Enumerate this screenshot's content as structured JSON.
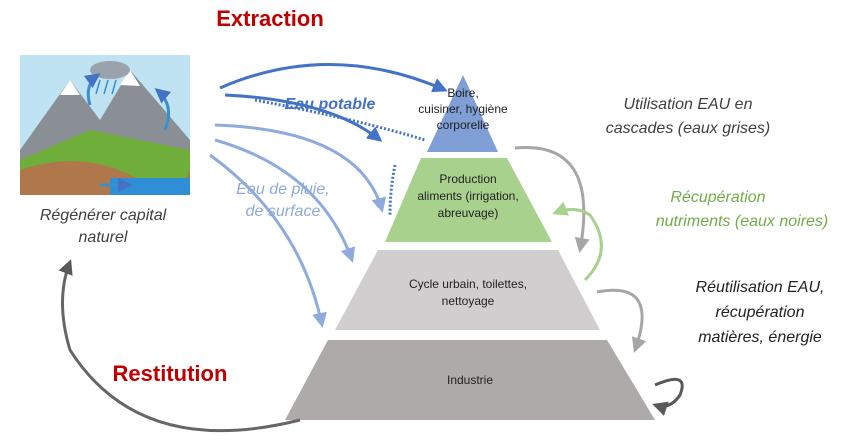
{
  "extraction": "Extraction",
  "restitution": "Restitution",
  "nature": {
    "lines": [
      "Régénérer capital",
      "naturel"
    ]
  },
  "flows": {
    "drinking": "Eau potable",
    "rain": [
      "Eau de pluie,",
      "de surface"
    ]
  },
  "levels": [
    {
      "lines": [
        "Boire,",
        "cuisiner, hygiène",
        "corporelle"
      ]
    },
    {
      "lines": [
        "Production",
        "aliments (irrigation,",
        "abreuvage)"
      ]
    },
    {
      "lines": [
        "Cycle urbain, toilettes,",
        "nettoyage"
      ]
    },
    {
      "lines": [
        "Industrie"
      ]
    }
  ],
  "annotations": {
    "greywater": [
      "Utilisation EAU en",
      "cascades (eaux grises)"
    ],
    "blackwater": [
      "Récupération",
      "nutriments (eaux noires)"
    ],
    "reuse": [
      "Réutilisation EAU,",
      "récupération",
      "matières, énergie"
    ]
  }
}
